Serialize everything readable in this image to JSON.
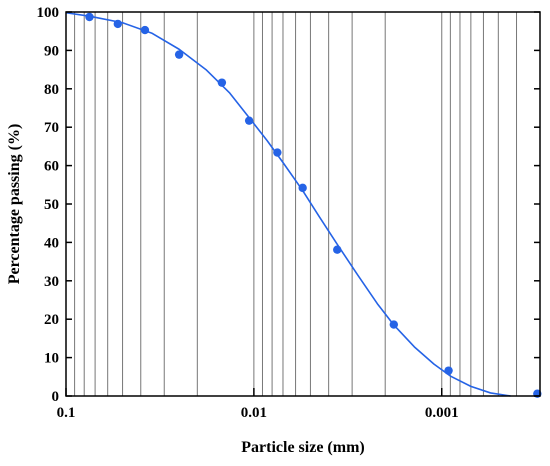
{
  "chart_data": {
    "type": "scatter",
    "title": "",
    "xlabel": "Particle size (mm)",
    "ylabel": "Percentage passing (%)",
    "x_scale": "log",
    "x_reversed": true,
    "xlim": [
      0.1,
      0.0003
    ],
    "ylim": [
      0,
      100
    ],
    "grid": "vertical-minor-and-major",
    "x_ticks": [
      {
        "value": 0.1,
        "label": "0.1"
      },
      {
        "value": 0.01,
        "label": "0.01"
      },
      {
        "value": 0.001,
        "label": "0.001"
      }
    ],
    "y_ticks": [
      {
        "value": 0,
        "label": "0"
      },
      {
        "value": 10,
        "label": "10"
      },
      {
        "value": 20,
        "label": "20"
      },
      {
        "value": 30,
        "label": "30"
      },
      {
        "value": 40,
        "label": "40"
      },
      {
        "value": 50,
        "label": "50"
      },
      {
        "value": 60,
        "label": "60"
      },
      {
        "value": 70,
        "label": "70"
      },
      {
        "value": 80,
        "label": "80"
      },
      {
        "value": 90,
        "label": "90"
      },
      {
        "value": 100,
        "label": "100"
      }
    ],
    "series": [
      {
        "kind": "points",
        "color": "#2563e6",
        "points": [
          {
            "x": 0.075,
            "y": 98.7
          },
          {
            "x": 0.053,
            "y": 96.9
          },
          {
            "x": 0.038,
            "y": 95.3
          },
          {
            "x": 0.025,
            "y": 88.9
          },
          {
            "x": 0.0148,
            "y": 81.6
          },
          {
            "x": 0.0106,
            "y": 71.7
          },
          {
            "x": 0.0075,
            "y": 63.4
          },
          {
            "x": 0.0055,
            "y": 54.2
          },
          {
            "x": 0.0036,
            "y": 38.1
          },
          {
            "x": 0.0018,
            "y": 18.6
          },
          {
            "x": 0.00092,
            "y": 6.6
          },
          {
            "x": 0.00031,
            "y": 0.6
          }
        ]
      },
      {
        "kind": "curve",
        "color": "#2563e6",
        "points": [
          {
            "x": 0.1,
            "y": 99.8
          },
          {
            "x": 0.075,
            "y": 98.9
          },
          {
            "x": 0.05,
            "y": 97.2
          },
          {
            "x": 0.035,
            "y": 94.5
          },
          {
            "x": 0.025,
            "y": 90.3
          },
          {
            "x": 0.018,
            "y": 85.0
          },
          {
            "x": 0.0135,
            "y": 79.0
          },
          {
            "x": 0.0106,
            "y": 72.5
          },
          {
            "x": 0.0085,
            "y": 66.5
          },
          {
            "x": 0.007,
            "y": 60.8
          },
          {
            "x": 0.0055,
            "y": 53.5
          },
          {
            "x": 0.0045,
            "y": 46.8
          },
          {
            "x": 0.0036,
            "y": 39.5
          },
          {
            "x": 0.0028,
            "y": 31.5
          },
          {
            "x": 0.0022,
            "y": 24.0
          },
          {
            "x": 0.0018,
            "y": 18.5
          },
          {
            "x": 0.0014,
            "y": 12.8
          },
          {
            "x": 0.0011,
            "y": 8.3
          },
          {
            "x": 0.0009,
            "y": 5.2
          },
          {
            "x": 0.0007,
            "y": 2.5
          },
          {
            "x": 0.00055,
            "y": 0.8
          },
          {
            "x": 0.00043,
            "y": 0.0
          }
        ]
      }
    ]
  }
}
